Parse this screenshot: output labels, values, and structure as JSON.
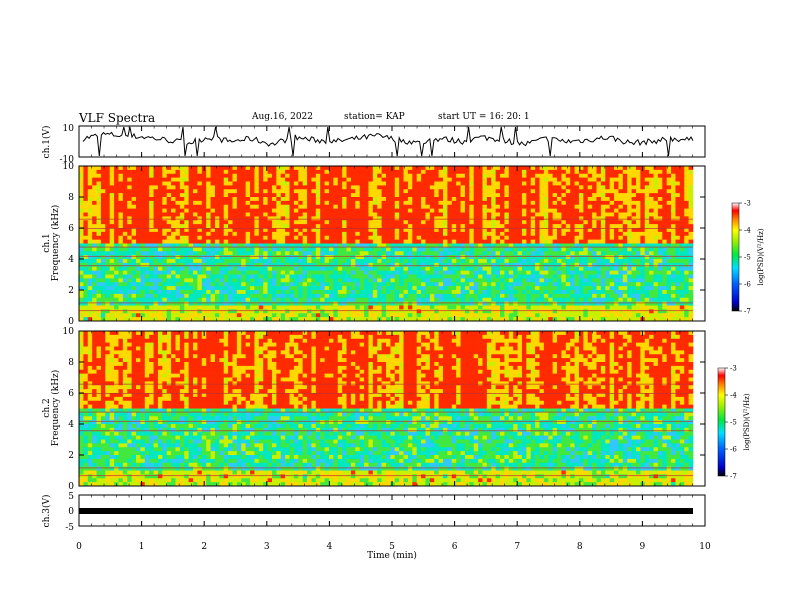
{
  "header": {
    "title": "VLF Spectra",
    "date": "Aug.16, 2022",
    "station": "station= KAP",
    "start": "start  UT =   16: 20: 1"
  },
  "chart_data": [
    {
      "type": "line",
      "ylabel": "ch.1(V)",
      "ylim": [
        -10,
        10
      ],
      "yticks": [
        "10",
        "-10"
      ],
      "xlim": [
        0,
        10
      ],
      "description_values": "noisy waveform centered near ~0 V with spikes to +/-10 V",
      "series": [
        {
          "values": [
            2,
            5,
            4,
            3,
            1,
            -1,
            3,
            0,
            2,
            -2,
            3,
            1,
            0,
            2,
            4,
            1,
            -1,
            2,
            0,
            3,
            1,
            -2,
            2,
            0,
            1,
            3,
            -1,
            0,
            2,
            1
          ]
        }
      ]
    },
    {
      "type": "heatmap",
      "ylabel": "ch.1\nFrequency  (kHz)",
      "ylim": [
        0,
        10
      ],
      "yticks": [
        "0",
        "2",
        "4",
        "6",
        "8",
        "10"
      ],
      "xlim": [
        0,
        10
      ],
      "colorbar": {
        "label": "log(PSD)(V²/Hz)",
        "range": [
          -7,
          -3
        ],
        "ticks": [
          "-3",
          "-4",
          "-5",
          "-6",
          "-7"
        ]
      }
    },
    {
      "type": "heatmap",
      "ylabel": "ch.2\nFrequency  (kHz)",
      "ylim": [
        0,
        10
      ],
      "yticks": [
        "0",
        "2",
        "4",
        "6",
        "8",
        "10"
      ],
      "xlim": [
        0,
        10
      ],
      "colorbar": {
        "label": "log(PSD)(V²/Hz)",
        "range": [
          -7,
          -3
        ],
        "ticks": [
          "-3",
          "-4",
          "-5",
          "-6",
          "-7"
        ]
      }
    },
    {
      "type": "line",
      "ylabel": "ch.3(V)",
      "ylim": [
        -5,
        5
      ],
      "yticks": [
        "5",
        "0",
        "-5"
      ],
      "xlim": [
        0,
        10
      ],
      "xlabel": "Time  (min)",
      "xticks": [
        "0",
        "1",
        "2",
        "3",
        "4",
        "5",
        "6",
        "7",
        "8",
        "9",
        "10"
      ],
      "series": [
        {
          "values": [
            0,
            0,
            0,
            0,
            0,
            0,
            0,
            0,
            0,
            0
          ]
        }
      ]
    }
  ]
}
